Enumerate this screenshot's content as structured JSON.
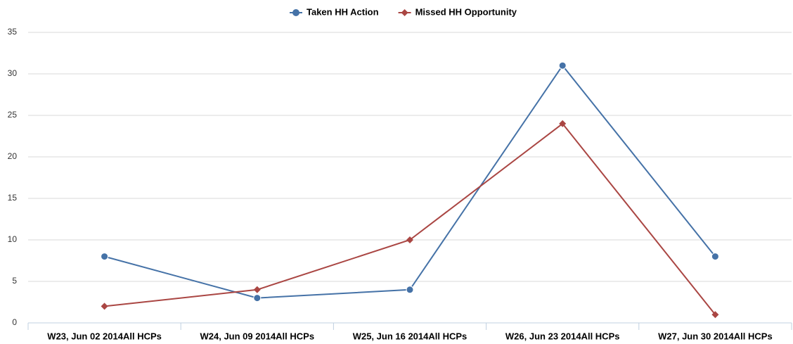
{
  "chart_data": {
    "type": "line",
    "categories": [
      "W23, Jun 02 2014All HCPs",
      "W24, Jun 09 2014All HCPs",
      "W25, Jun 16 2014All HCPs",
      "W26, Jun 23 2014All HCPs",
      "W27, Jun 30 2014All HCPs"
    ],
    "series": [
      {
        "name": "Taken HH Action",
        "color": "#4572a7",
        "marker": "circle",
        "values": [
          8,
          3,
          4,
          31,
          8
        ]
      },
      {
        "name": "Missed HH Opportunity",
        "color": "#aa4643",
        "marker": "diamond",
        "values": [
          2,
          4,
          10,
          24,
          1
        ]
      }
    ],
    "ylim": [
      0,
      35
    ],
    "yticks": [
      0,
      5,
      10,
      15,
      20,
      25,
      30,
      35
    ],
    "grid": true,
    "legend": "top"
  }
}
